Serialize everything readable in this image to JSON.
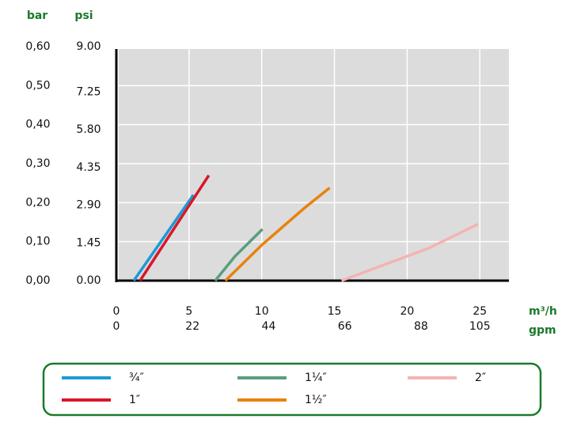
{
  "chart_data": {
    "type": "line",
    "y_title": "bar",
    "y2_title": "psi",
    "x_title": "m³/h",
    "x2_title": "gpm",
    "xlim": [
      0,
      27
    ],
    "xticks": [
      0,
      5,
      10,
      15,
      20,
      25
    ],
    "x2lim": [
      0,
      113.4
    ],
    "x2ticks": [
      0,
      22,
      44,
      66,
      88,
      105
    ],
    "ylim": [
      0,
      0.6
    ],
    "yticks": [
      {
        "value": 0,
        "label": "0,00"
      },
      {
        "value": 0.1,
        "label": "0,10"
      },
      {
        "value": 0.2,
        "label": "0,20"
      },
      {
        "value": 0.3,
        "label": "0,30"
      },
      {
        "value": 0.4,
        "label": "0,40"
      },
      {
        "value": 0.5,
        "label": "0,50"
      },
      {
        "value": 0.6,
        "label": "0,60"
      }
    ],
    "y2lim": [
      0,
      9
    ],
    "y2ticks": [
      {
        "value": 0,
        "label": "0.00"
      },
      1.45,
      {
        "value": 2.9,
        "label": "2.90"
      },
      4.35,
      {
        "value": 5.8,
        "label": "5.80"
      },
      7.25,
      {
        "value": 9,
        "label": "9.00"
      }
    ],
    "grid": true,
    "series": [
      {
        "name": "¾″",
        "color": "#1c9ad6",
        "x": [
          1.2,
          5.3
        ],
        "values": [
          0,
          0.22
        ]
      },
      {
        "name": "1″",
        "color": "#d7182a",
        "x": [
          1.63,
          6.36
        ],
        "values": [
          0,
          0.27
        ]
      },
      {
        "name": "1¼″",
        "color": "#5a9e7e",
        "x": [
          6.8,
          8.15,
          10.05
        ],
        "values": [
          0,
          0.062,
          0.132
        ]
      },
      {
        "name": "1½″",
        "color": "#e8820e",
        "x": [
          7.5,
          10.05,
          12.93,
          14.67
        ],
        "values": [
          0,
          0.093,
          0.186,
          0.238
        ]
      },
      {
        "name": "2″",
        "color": "#f4b3b3",
        "x": [
          15.49,
          21.47,
          24.89
        ],
        "values": [
          0,
          0.083,
          0.145
        ]
      }
    ]
  }
}
